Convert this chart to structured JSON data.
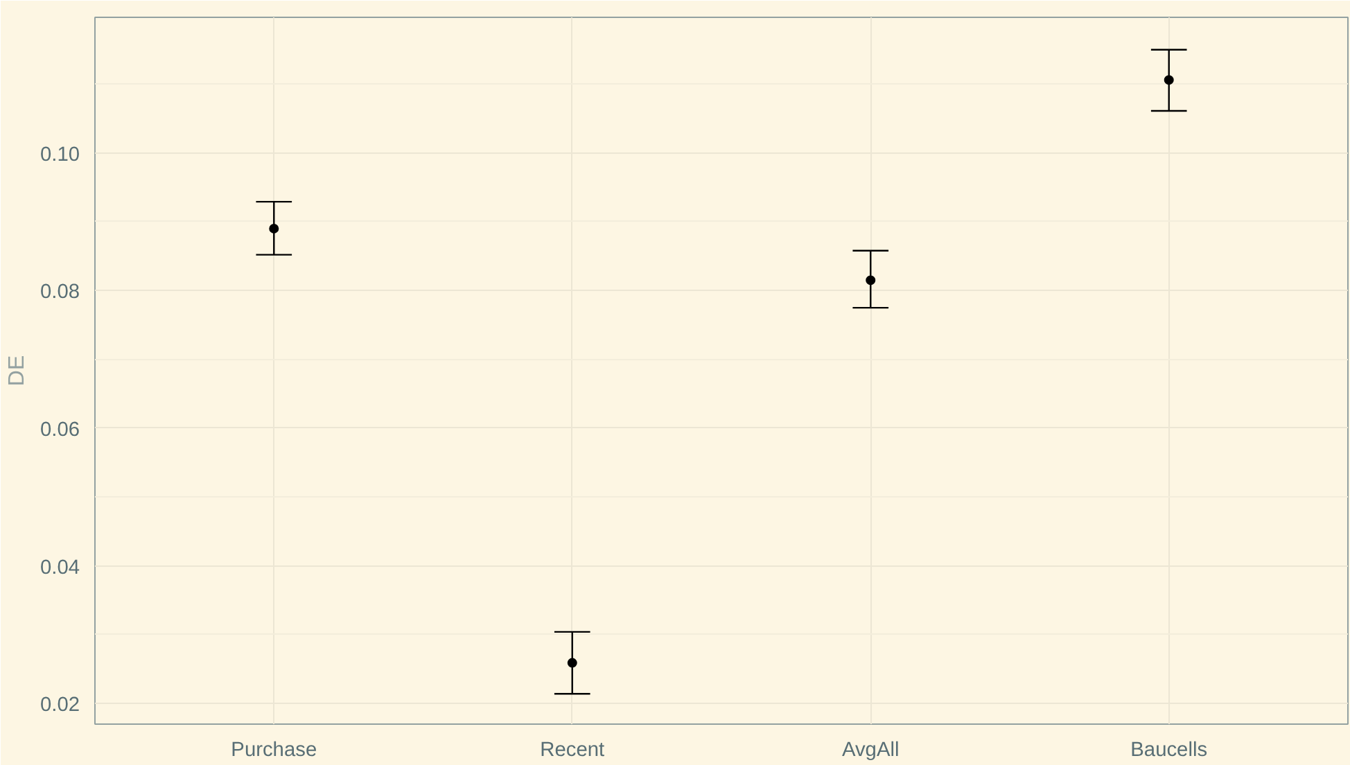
{
  "chart_data": {
    "type": "scatter",
    "ylabel": "DE",
    "categories": [
      "Purchase",
      "Recent",
      "AvgAll",
      "Baucells"
    ],
    "values": [
      0.089,
      0.0259,
      0.0815,
      0.1106
    ],
    "errors": [
      [
        0.0852,
        0.0929
      ],
      [
        0.0214,
        0.0304
      ],
      [
        0.0775,
        0.0858
      ],
      [
        0.1061,
        0.115
      ]
    ],
    "color": "#000000",
    "marker": "circle",
    "grid": true,
    "ylim": [
      0.017,
      0.1197
    ],
    "yticks": [
      {
        "value": 0.02,
        "label": "0.02"
      },
      {
        "value": 0.04,
        "label": "0.04"
      },
      {
        "value": 0.06,
        "label": "0.06"
      },
      {
        "value": 0.08,
        "label": "0.08"
      },
      {
        "value": 0.1,
        "label": "0.10"
      }
    ]
  }
}
